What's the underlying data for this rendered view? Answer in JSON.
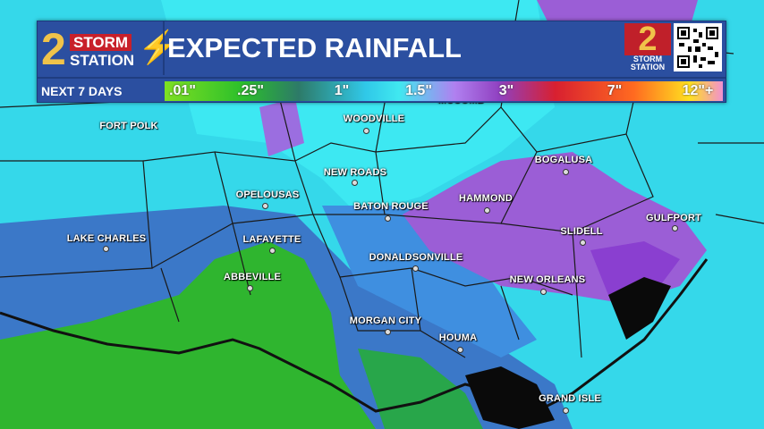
{
  "banner": {
    "logo": {
      "number": "2",
      "line1": "STORM",
      "line2": "STATION"
    },
    "title": "EXPECTED RAINFALL",
    "right_logo": {
      "number": "2",
      "line1": "STORM",
      "line2": "STATION"
    },
    "period": "NEXT 7 DAYS",
    "scale_ticks": [
      ".01\"",
      ".25\"",
      "1\"",
      "1.5\"",
      "3\"",
      "7\"",
      "12\"+"
    ]
  },
  "map": {
    "colors": {
      "light": "#35d8ea",
      "cyan": "#3be8f2",
      "blue": "#3b78c8",
      "green": "#2fb52f",
      "purple": "#9b5ed6",
      "water_dark": "#0a0a0a"
    },
    "cities": [
      "MCCOMB",
      "FORT POLK",
      "WOODVILLE",
      "NEW ROADS",
      "OPELOUSAS",
      "BATON ROUGE",
      "HAMMOND",
      "BOGALUSA",
      "SLIDELL",
      "GULFPORT",
      "LAKE CHARLES",
      "LAFAYETTE",
      "ABBEVILLE",
      "DONALDSONVILLE",
      "NEW ORLEANS",
      "MORGAN CITY",
      "HOUMA",
      "GRAND ISLE"
    ]
  }
}
